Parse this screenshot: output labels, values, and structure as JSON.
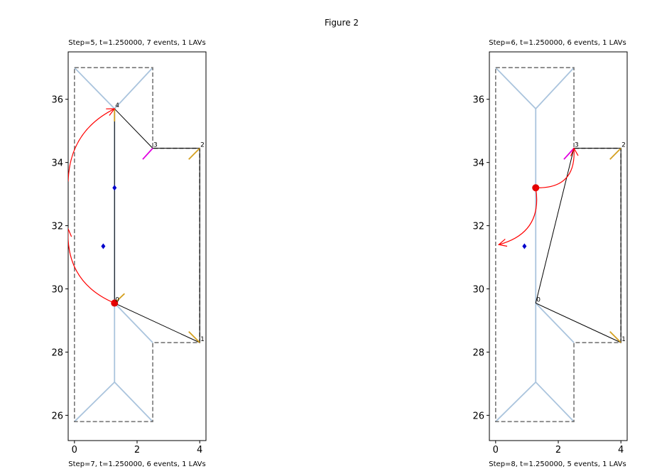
{
  "figure": {
    "title": "Figure 2"
  },
  "chart_data": [
    {
      "type": "diagram-plot",
      "title": "Step=5, t=1.250000, 7 events, 1 LAVs",
      "xlim": [
        -0.2,
        4.2
      ],
      "ylim": [
        25.2,
        37.5
      ],
      "xticks": [
        "0",
        "2",
        "4"
      ],
      "xtick_values": [
        0,
        2,
        4
      ],
      "yticks": [
        "26",
        "28",
        "30",
        "32",
        "34",
        "36"
      ],
      "ytick_values": [
        26,
        28,
        30,
        32,
        34,
        36
      ],
      "polygon": [
        [
          0,
          37
        ],
        [
          2.5,
          37
        ],
        [
          2.5,
          34.45
        ],
        [
          4,
          34.45
        ],
        [
          4,
          28.3
        ],
        [
          2.5,
          28.3
        ],
        [
          2.5,
          25.8
        ],
        [
          0,
          25.8
        ]
      ],
      "skeleton_lines": [
        [
          [
            0,
            37
          ],
          [
            1.28,
            35.7
          ]
        ],
        [
          [
            2.5,
            37
          ],
          [
            1.28,
            35.7
          ]
        ],
        [
          [
            1.28,
            35.7
          ],
          [
            1.28,
            29.55
          ]
        ],
        [
          [
            1.28,
            29.55
          ],
          [
            2.5,
            28.3
          ]
        ],
        [
          [
            1.28,
            29.55
          ],
          [
            1.28,
            27.05
          ]
        ],
        [
          [
            0,
            25.8
          ],
          [
            1.28,
            27.05
          ]
        ],
        [
          [
            2.5,
            25.8
          ],
          [
            1.28,
            27.05
          ]
        ]
      ],
      "lav_lines": [
        [
          [
            1.28,
            35.7
          ],
          [
            2.5,
            34.45
          ]
        ],
        [
          [
            2.5,
            34.45
          ],
          [
            4,
            34.45
          ]
        ],
        [
          [
            4,
            34.45
          ],
          [
            4,
            28.3
          ]
        ],
        [
          [
            4,
            28.3
          ],
          [
            1.28,
            29.55
          ]
        ],
        [
          [
            1.28,
            29.55
          ],
          [
            1.28,
            35.7
          ]
        ]
      ],
      "bisectors": [
        {
          "from": [
            2.5,
            34.45
          ],
          "to": [
            2.18,
            34.1
          ],
          "color": "#e000e0"
        },
        {
          "from": [
            4,
            34.45
          ],
          "to": [
            3.65,
            34.1
          ],
          "color": "#d4a020"
        },
        {
          "from": [
            4,
            28.3
          ],
          "to": [
            3.65,
            28.65
          ],
          "color": "#d4a020"
        },
        {
          "from": [
            1.28,
            29.55
          ],
          "to": [
            1.6,
            29.85
          ],
          "color": "#d4a020"
        },
        {
          "from": [
            1.28,
            35.7
          ],
          "to": [
            1.28,
            35.3
          ],
          "color": "#d4a020"
        }
      ],
      "vertex_labels": [
        {
          "text": "4",
          "x": 1.28,
          "y": 35.7
        },
        {
          "text": "3",
          "x": 2.5,
          "y": 34.45
        },
        {
          "text": "2",
          "x": 4,
          "y": 34.45
        },
        {
          "text": "1",
          "x": 4,
          "y": 28.3
        },
        {
          "text": "0",
          "x": 1.28,
          "y": 29.55
        }
      ],
      "events": [
        [
          1.28,
          33.2
        ],
        [
          0.92,
          31.35
        ]
      ],
      "active_marker": {
        "x": 1.28,
        "y": 29.55
      },
      "arrows": [
        {
          "from": [
            1.28,
            29.55
          ],
          "to": [
            -0.2,
            31.9
          ],
          "curve": -0.35
        },
        {
          "from": [
            -0.2,
            33.4
          ],
          "to": [
            1.28,
            35.7
          ],
          "curve": -0.3
        }
      ]
    },
    {
      "type": "diagram-plot",
      "title": "Step=6, t=1.250000, 6 events, 1 LAVs",
      "xlim": [
        -0.2,
        4.2
      ],
      "ylim": [
        25.2,
        37.5
      ],
      "xticks": [
        "0",
        "2",
        "4"
      ],
      "xtick_values": [
        0,
        2,
        4
      ],
      "yticks": [
        "26",
        "28",
        "30",
        "32",
        "34",
        "36"
      ],
      "ytick_values": [
        26,
        28,
        30,
        32,
        34,
        36
      ],
      "polygon": [
        [
          0,
          37
        ],
        [
          2.5,
          37
        ],
        [
          2.5,
          34.45
        ],
        [
          4,
          34.45
        ],
        [
          4,
          28.3
        ],
        [
          2.5,
          28.3
        ],
        [
          2.5,
          25.8
        ],
        [
          0,
          25.8
        ]
      ],
      "skeleton_lines": [
        [
          [
            0,
            37
          ],
          [
            1.28,
            35.7
          ]
        ],
        [
          [
            2.5,
            37
          ],
          [
            1.28,
            35.7
          ]
        ],
        [
          [
            1.28,
            35.7
          ],
          [
            1.28,
            29.55
          ]
        ],
        [
          [
            1.28,
            29.55
          ],
          [
            2.5,
            28.3
          ]
        ],
        [
          [
            1.28,
            29.55
          ],
          [
            1.28,
            27.05
          ]
        ],
        [
          [
            0,
            25.8
          ],
          [
            1.28,
            27.05
          ]
        ],
        [
          [
            2.5,
            25.8
          ],
          [
            1.28,
            27.05
          ]
        ]
      ],
      "lav_lines": [
        [
          [
            1.28,
            29.55
          ],
          [
            2.5,
            34.45
          ]
        ],
        [
          [
            2.5,
            34.45
          ],
          [
            4,
            34.45
          ]
        ],
        [
          [
            4,
            34.45
          ],
          [
            4,
            28.3
          ]
        ],
        [
          [
            4,
            28.3
          ],
          [
            1.28,
            29.55
          ]
        ]
      ],
      "bisectors": [
        {
          "from": [
            2.5,
            34.45
          ],
          "to": [
            2.18,
            34.1
          ],
          "color": "#e000e0"
        },
        {
          "from": [
            4,
            34.45
          ],
          "to": [
            3.65,
            34.1
          ],
          "color": "#d4a020"
        },
        {
          "from": [
            4,
            28.3
          ],
          "to": [
            3.65,
            28.65
          ],
          "color": "#d4a020"
        }
      ],
      "vertex_labels": [
        {
          "text": "3",
          "x": 2.5,
          "y": 34.45
        },
        {
          "text": "2",
          "x": 4,
          "y": 34.45
        },
        {
          "text": "1",
          "x": 4,
          "y": 28.3
        },
        {
          "text": "0",
          "x": 1.28,
          "y": 29.55
        }
      ],
      "events": [
        [
          0.92,
          31.35
        ]
      ],
      "active_marker": {
        "x": 1.28,
        "y": 33.2
      },
      "arrows": [
        {
          "from": [
            1.28,
            33.2
          ],
          "to": [
            2.5,
            34.45
          ],
          "curve": 0.55
        },
        {
          "from": [
            1.28,
            33.2
          ],
          "to": [
            0.1,
            31.4
          ],
          "curve": -0.45
        }
      ]
    }
  ],
  "bottom_titles": [
    "Step=7, t=1.250000, 6 events, 1 LAVs",
    "Step=8, t=1.250000, 5 events, 1 LAVs"
  ]
}
